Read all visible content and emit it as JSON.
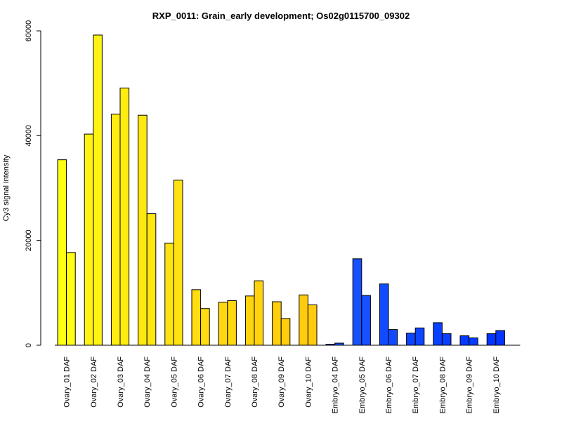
{
  "chart_data": {
    "type": "bar",
    "title": "RXP_0011: Grain_early development; Os02g0115700_09302",
    "xlabel": "",
    "ylabel": "Cy3 signal intensity",
    "ylim": [
      0,
      60000
    ],
    "yticks": [
      0,
      20000,
      40000,
      60000
    ],
    "yticks_labels": [
      "0",
      "20000",
      "40000",
      "60000"
    ],
    "grid": false,
    "legend": "none",
    "categories": [
      "Ovary_01 DAF",
      "Ovary_02 DAF",
      "Ovary_03 DAF",
      "Ovary_04 DAF",
      "Ovary_05 DAF",
      "Ovary_06 DAF",
      "Ovary_07 DAF",
      "Ovary_08 DAF",
      "Ovary_09 DAF",
      "Ovary_10 DAF",
      "Embryo_04 DAF",
      "Embryo_05 DAF",
      "Embryo_06 DAF",
      "Embryo_07 DAF",
      "Embryo_08 DAF",
      "Embryo_09 DAF",
      "Embryo_10 DAF"
    ],
    "series": [
      {
        "values": [
          35400,
          40300,
          44100,
          43900,
          19500,
          10600,
          8200,
          9400,
          8300,
          9600,
          200,
          16500,
          11700,
          2300,
          4300,
          1800,
          2200
        ]
      },
      {
        "values": [
          17700,
          59200,
          49100,
          25100,
          31500,
          7000,
          8500,
          12300,
          5100,
          7700,
          400,
          9500,
          3000,
          3300,
          2200,
          1400,
          2800
        ]
      }
    ],
    "bar_colors": [
      "#ffff14",
      "#fff313",
      "#ffed12",
      "#ffe712",
      "#ffe211",
      "#ffdd10",
      "#ffd80f",
      "#ffd30e",
      "#ffcf0d",
      "#ffcb0c",
      "#1a55ff",
      "#1650ff",
      "#124bff",
      "#0e45ff",
      "#0a40ff",
      "#063aff",
      "#0235ff"
    ]
  }
}
